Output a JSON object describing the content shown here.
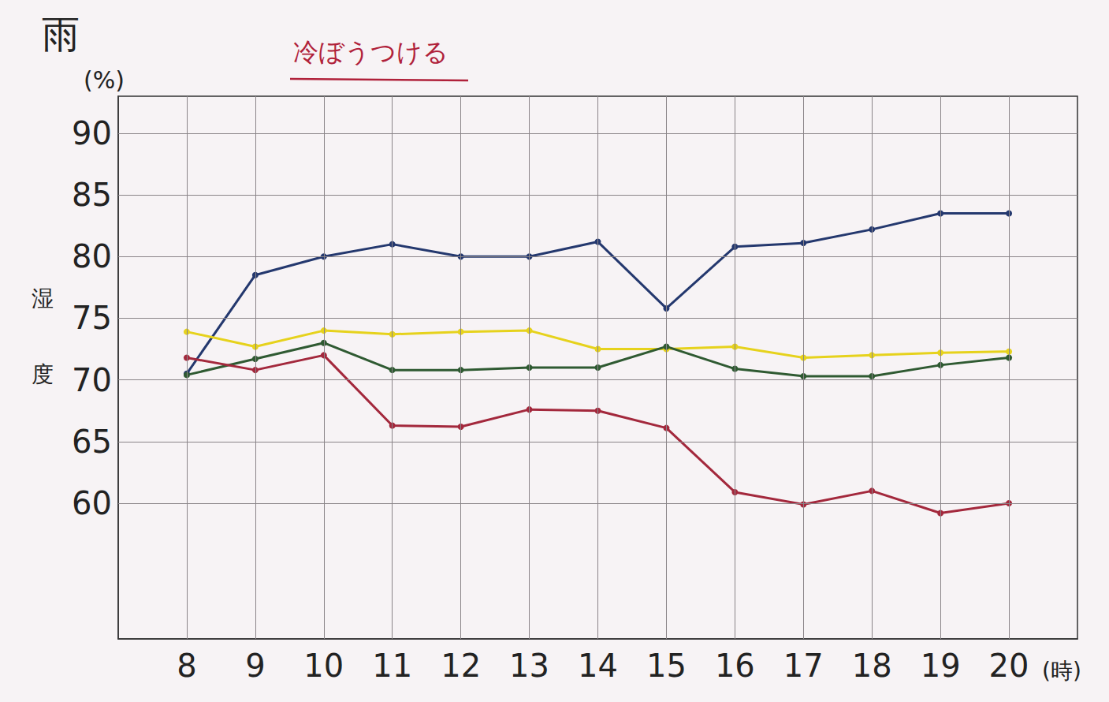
{
  "chart_data": {
    "type": "line",
    "title": "雨",
    "ylabel": "湿度",
    "ylabel_unit": "(%)",
    "xlabel": "(時)",
    "annotations": [
      "冷ぼうつける"
    ],
    "x": [
      8,
      9,
      10,
      11,
      12,
      13,
      14,
      15,
      16,
      17,
      18,
      19,
      20
    ],
    "xlim": [
      7,
      21
    ],
    "xticks": [
      8,
      9,
      10,
      11,
      12,
      13,
      14,
      15,
      16,
      17,
      18,
      19,
      20
    ],
    "ylim": [
      49,
      93
    ],
    "yticks": [
      60,
      65,
      70,
      75,
      80,
      85,
      90
    ],
    "grid": true,
    "marker": "circle",
    "series": [
      {
        "color": "#24386e",
        "values": [
          70.5,
          78.5,
          80,
          81,
          80,
          80,
          81.2,
          75.8,
          80.8,
          81.1,
          82.2,
          83.5,
          83.5
        ]
      },
      {
        "color": "#e6d21c",
        "values": [
          73.9,
          72.7,
          74,
          73.7,
          73.9,
          74,
          72.5,
          72.5,
          72.7,
          71.8,
          72,
          72.2,
          72.3
        ]
      },
      {
        "color": "#2f5a32",
        "values": [
          70.4,
          71.7,
          73,
          70.8,
          70.8,
          71,
          71,
          72.7,
          70.9,
          70.3,
          70.3,
          71.2,
          71.8
        ]
      },
      {
        "color": "#a3283c",
        "values": [
          71.8,
          70.8,
          72,
          66.3,
          66.2,
          67.6,
          67.5,
          66.1,
          60.9,
          59.9,
          61,
          59.2,
          60
        ]
      }
    ]
  }
}
